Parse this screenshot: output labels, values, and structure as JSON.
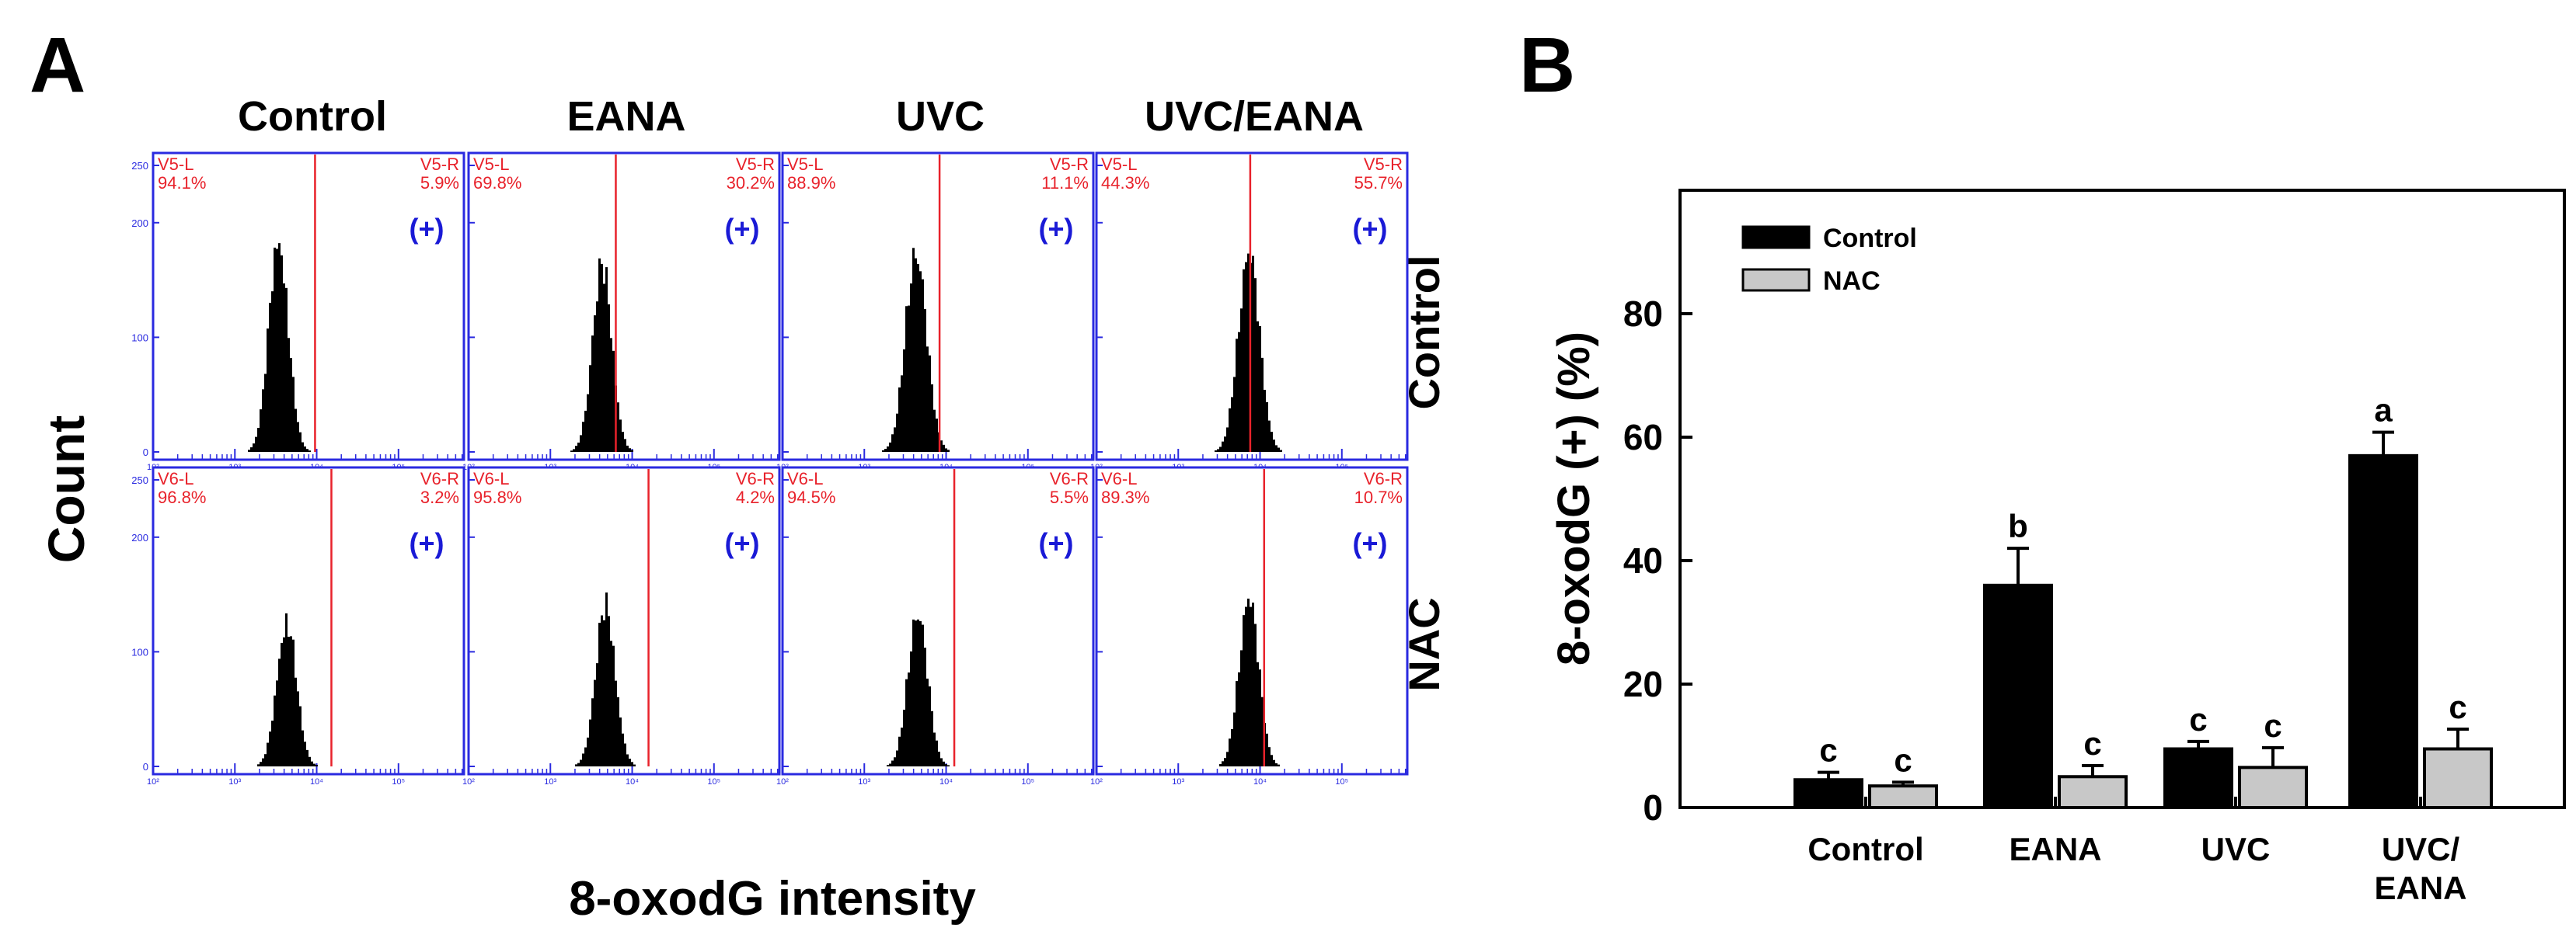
{
  "panels": {
    "a_label": "A",
    "b_label": "B"
  },
  "chart_data": [
    {
      "type": "histogram-grid",
      "panel": "A",
      "column_headers": [
        "Control",
        "EANA",
        "UVC",
        "UVC/EANA"
      ],
      "row_labels": [
        "Control",
        "NAC"
      ],
      "xlabel": "8-oxodG intensity",
      "ylabel": "Count",
      "x_scale": "log",
      "x_ticks": [
        "10²",
        "10³",
        "10⁴",
        "10⁵"
      ],
      "y_ticks": [
        "0",
        "100",
        "200",
        "250"
      ],
      "ylim": [
        0,
        250
      ],
      "positive_marker": "(+)",
      "colors": {
        "frame": "#2a2ae0",
        "gate": "#e8222b",
        "gate_text": "#e8222b",
        "marker": "#1a1ad6",
        "histogram": "#000000"
      },
      "rows": [
        {
          "cells": [
            {
              "left_gate": "V5-L",
              "left_pct": "94.1%",
              "right_gate": "V5-R",
              "right_pct": "5.9%",
              "peak": 3.52,
              "width": 0.12,
              "peak_count": 205,
              "gate_at": 3.98
            },
            {
              "left_gate": "V5-L",
              "left_pct": "69.8%",
              "right_gate": "V5-R",
              "right_pct": "30.2%",
              "peak": 3.62,
              "width": 0.12,
              "peak_count": 180,
              "gate_at": 3.8
            },
            {
              "left_gate": "V5-L",
              "left_pct": "88.9%",
              "right_gate": "V5-R",
              "right_pct": "11.1%",
              "peak": 3.62,
              "width": 0.13,
              "peak_count": 195,
              "gate_at": 3.92
            },
            {
              "left_gate": "V5-L",
              "left_pct": "44.3%",
              "right_gate": "V5-R",
              "right_pct": "55.7%",
              "peak": 3.85,
              "width": 0.13,
              "peak_count": 195,
              "gate_at": 3.88
            }
          ]
        },
        {
          "cells": [
            {
              "left_gate": "V6-L",
              "left_pct": "96.8%",
              "right_gate": "V6-R",
              "right_pct": "3.2%",
              "peak": 3.62,
              "width": 0.12,
              "peak_count": 140,
              "gate_at": 4.18
            },
            {
              "left_gate": "V6-L",
              "left_pct": "95.8%",
              "right_gate": "V6-R",
              "right_pct": "4.2%",
              "peak": 3.66,
              "width": 0.12,
              "peak_count": 155,
              "gate_at": 4.2
            },
            {
              "left_gate": "V6-L",
              "left_pct": "94.5%",
              "right_gate": "V6-R",
              "right_pct": "5.5%",
              "peak": 3.64,
              "width": 0.12,
              "peak_count": 150,
              "gate_at": 4.1
            },
            {
              "left_gate": "V6-L",
              "left_pct": "89.3%",
              "right_gate": "V6-R",
              "right_pct": "10.7%",
              "peak": 3.85,
              "width": 0.12,
              "peak_count": 165,
              "gate_at": 4.05
            }
          ]
        }
      ]
    },
    {
      "type": "bar",
      "panel": "B",
      "categories": [
        "Control",
        "EANA",
        "UVC",
        "UVC/\nEANA"
      ],
      "ylabel": "8-oxodG (+) (%)",
      "xlabel": "",
      "ylim": [
        0,
        100
      ],
      "yticks": [
        0,
        20,
        40,
        60,
        80
      ],
      "legend_position": "top-left",
      "series": [
        {
          "name": "Control",
          "color": "#000000",
          "values": [
            4.5,
            36,
            9.5,
            57
          ],
          "errors": [
            1.2,
            6,
            1.2,
            3.8
          ],
          "letters": [
            "c",
            "b",
            "c",
            "a"
          ]
        },
        {
          "name": "NAC",
          "color": "#c8c8c8",
          "values": [
            3.5,
            5,
            6.5,
            9.5
          ],
          "errors": [
            0.6,
            1.8,
            3.2,
            3.2
          ],
          "letters": [
            "c",
            "c",
            "c",
            "c"
          ]
        }
      ]
    }
  ]
}
